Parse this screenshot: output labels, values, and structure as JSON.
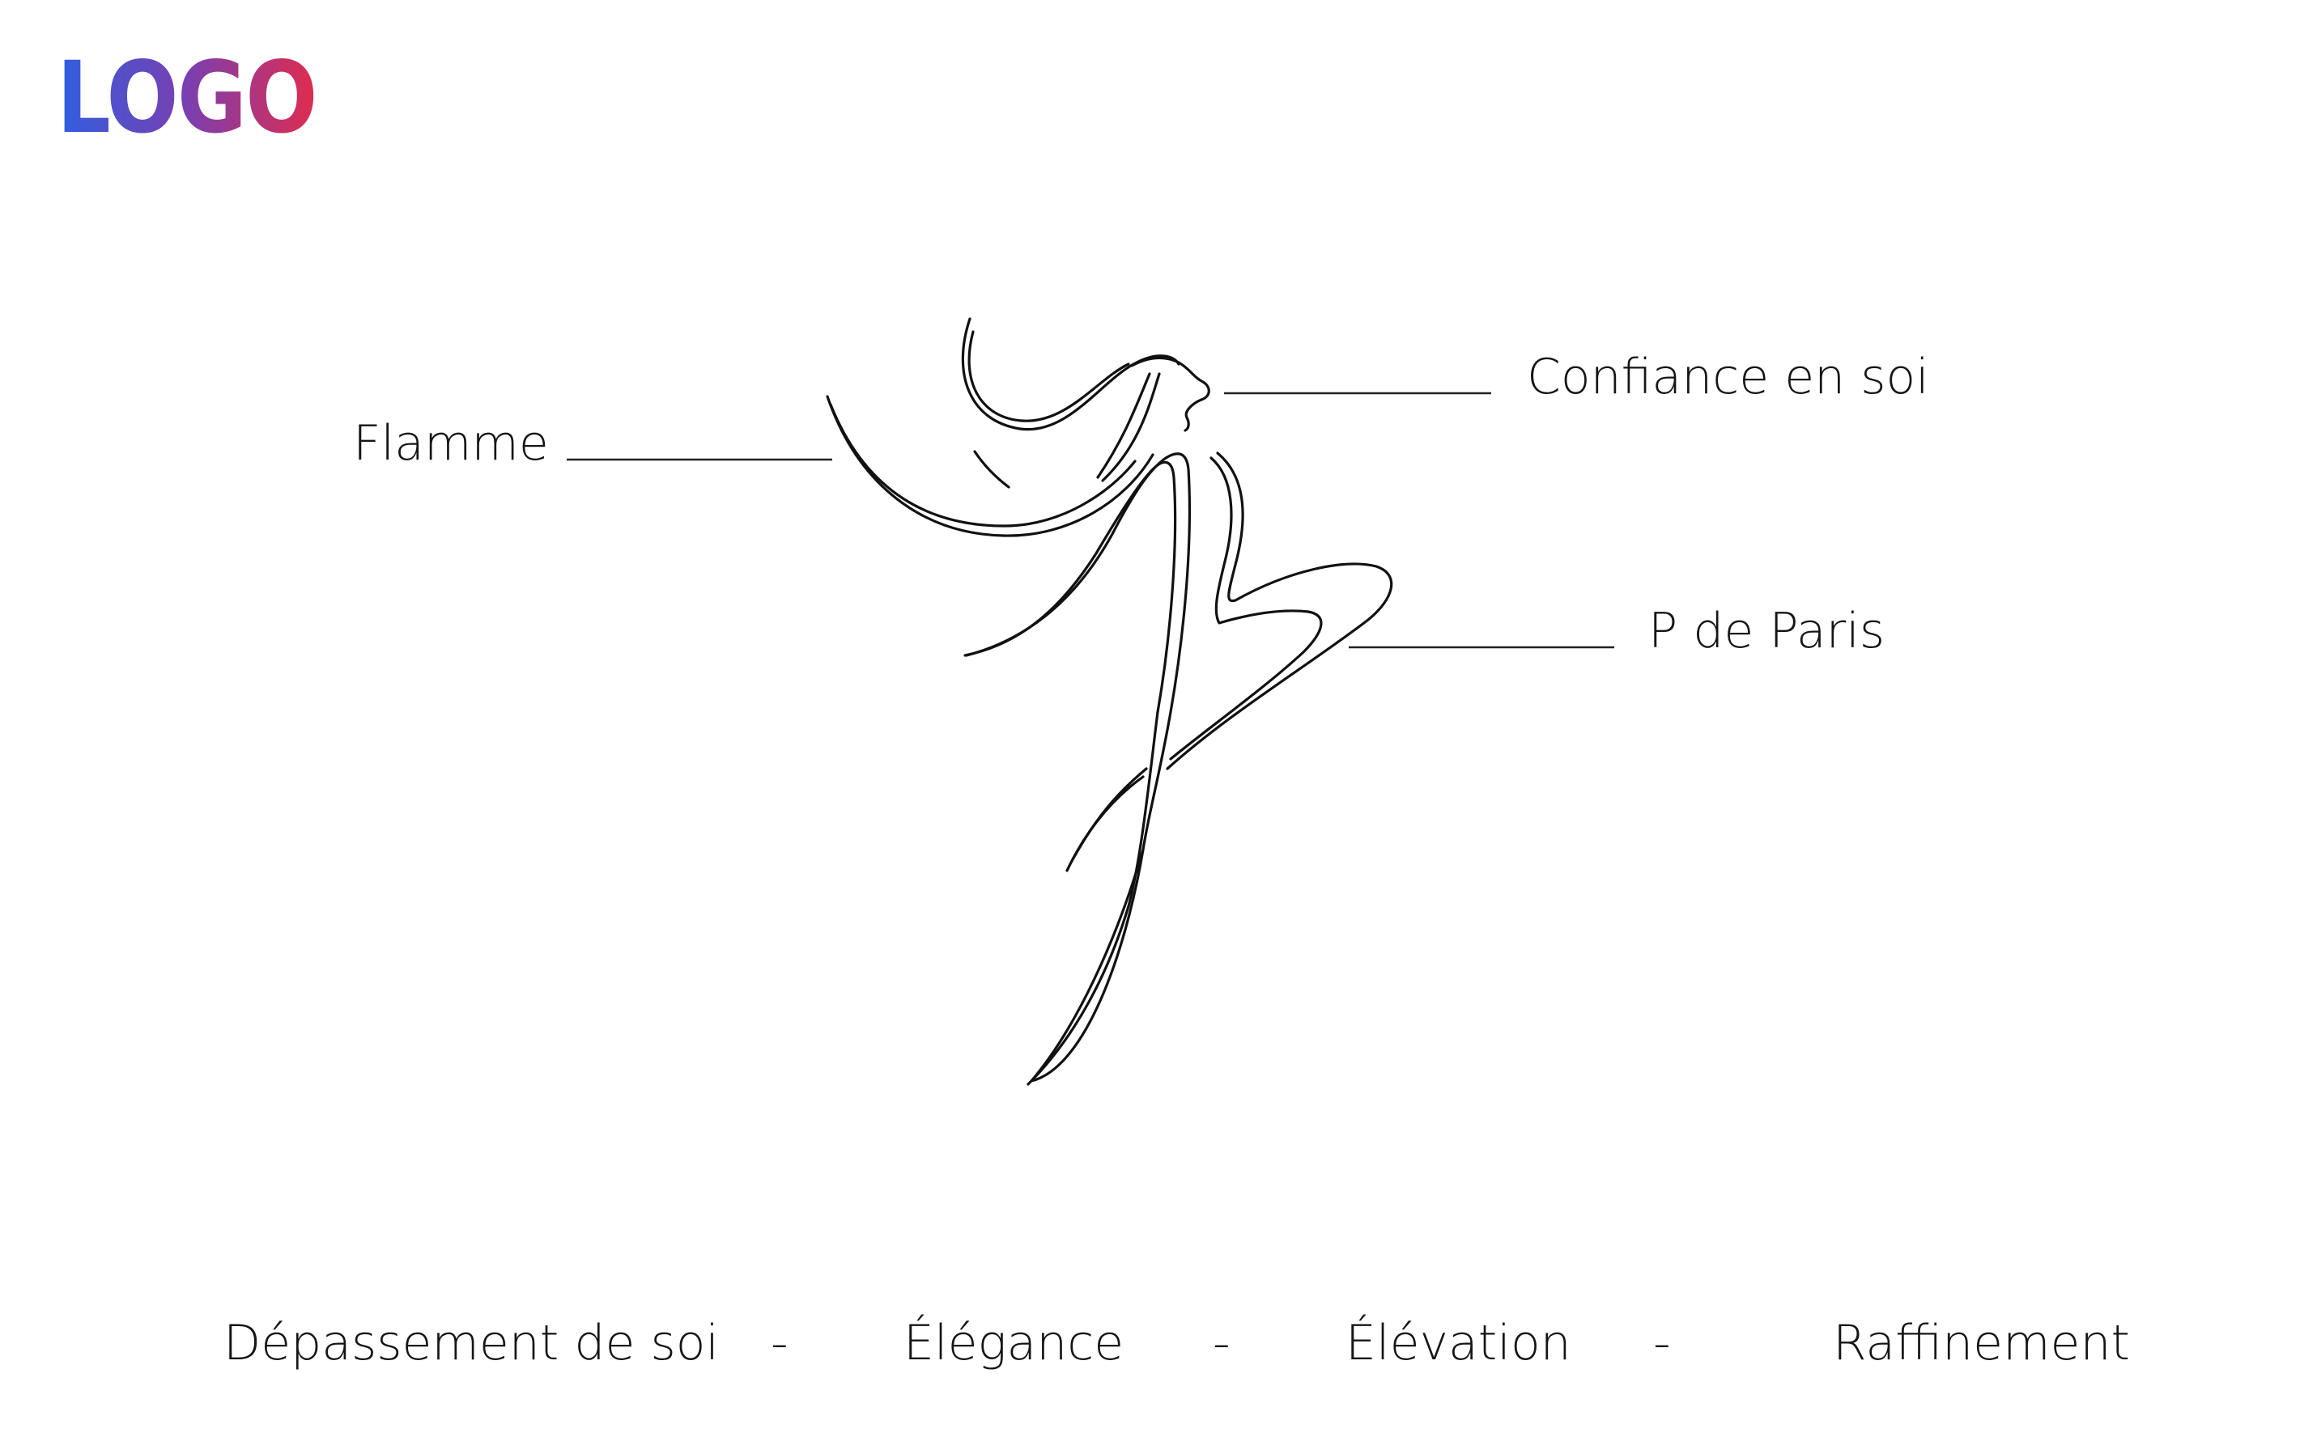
{
  "logo": {
    "text": "LOGO",
    "gradient": [
      "#2f5fe0",
      "#7a3fb0",
      "#e02c4e"
    ]
  },
  "labels": {
    "flamme": "Flamme",
    "confiance": "Confiance en soi",
    "paris": "P de Paris"
  },
  "values": {
    "items": [
      "Dépassement de soi",
      "Élégance",
      "Élévation",
      "Raffinement"
    ],
    "separator": "-"
  },
  "colors": {
    "line": "#111111",
    "background": "#ffffff"
  }
}
